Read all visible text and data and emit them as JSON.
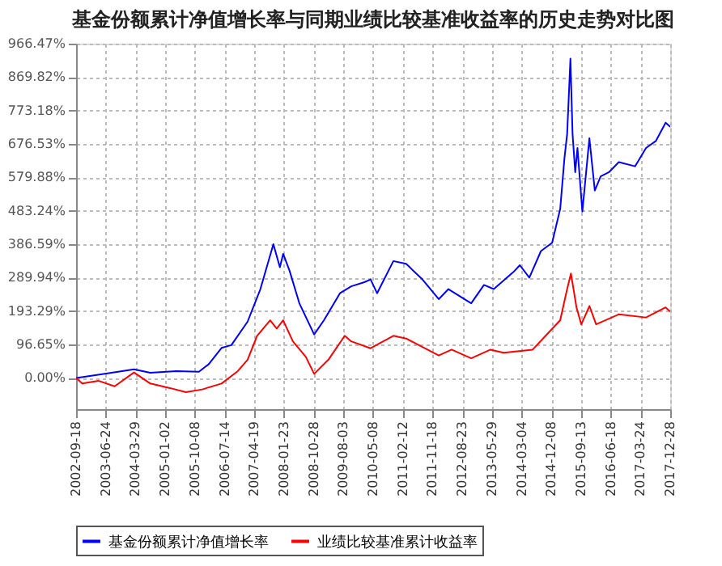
{
  "chart_data": {
    "type": "line",
    "title": "基金份额累计净值增长率与同期业绩比较基准收益率的历史走势对比图",
    "xlim": [
      "2002-09-18",
      "2017-12-28"
    ],
    "xticks": [
      "2002-09-18",
      "2003-06-24",
      "2004-03-29",
      "2005-01-02",
      "2005-10-08",
      "2006-07-14",
      "2007-04-19",
      "2008-01-23",
      "2008-10-28",
      "2009-08-03",
      "2010-05-08",
      "2011-02-12",
      "2011-11-18",
      "2012-08-23",
      "2013-05-29",
      "2014-03-04",
      "2014-12-08",
      "2015-09-13",
      "2016-06-18",
      "2017-03-24",
      "2017-12-28"
    ],
    "ylim": [
      -90,
      966.47
    ],
    "yticks": [
      {
        "value": 0,
        "label": "0.00%"
      },
      {
        "value": 96.65,
        "label": "96.65%"
      },
      {
        "value": 193.29,
        "label": "193.29%"
      },
      {
        "value": 289.94,
        "label": "289.94%"
      },
      {
        "value": 386.59,
        "label": "386.59%"
      },
      {
        "value": 483.24,
        "label": "483.24%"
      },
      {
        "value": 579.88,
        "label": "579.88%"
      },
      {
        "value": 676.53,
        "label": "676.53%"
      },
      {
        "value": 773.18,
        "label": "773.18%"
      },
      {
        "value": 869.82,
        "label": "869.82%"
      },
      {
        "value": 966.47,
        "label": "966.47%"
      }
    ],
    "grid": true,
    "legend": "bottom",
    "line_style": "solid",
    "marker": "none",
    "series": [
      {
        "name": "基金份额累计净值增长率",
        "color": "#0000ff",
        "x": [
          "2002-09-18",
          "2003-06-15",
          "2004-03-15",
          "2004-08-15",
          "2005-04-15",
          "2005-11-15",
          "2006-02-15",
          "2006-06-15",
          "2006-09-15",
          "2007-02-15",
          "2007-06-15",
          "2007-10-15",
          "2007-12-15",
          "2008-01-15",
          "2008-03-15",
          "2008-06-15",
          "2008-11-01",
          "2009-02-01",
          "2009-07-01",
          "2009-10-15",
          "2010-02-15",
          "2010-04-15",
          "2010-06-15",
          "2010-11-15",
          "2011-03-15",
          "2011-08-15",
          "2012-01-15",
          "2012-04-15",
          "2012-11-15",
          "2013-03-15",
          "2013-06-15",
          "2013-12-15",
          "2014-02-15",
          "2014-05-15",
          "2014-09-01",
          "2014-12-15",
          "2015-03-01",
          "2015-04-10",
          "2015-05-05",
          "2015-06-05",
          "2015-06-25",
          "2015-07-20",
          "2015-08-10",
          "2015-09-25",
          "2015-11-30",
          "2016-01-20",
          "2016-03-15",
          "2016-06-01",
          "2016-09-01",
          "2017-02-01",
          "2017-05-15",
          "2017-08-15",
          "2017-11-15",
          "2017-12-28"
        ],
        "values": [
          0,
          12,
          25,
          15,
          20,
          18,
          40,
          87,
          95,
          163,
          257,
          387,
          320,
          359,
          310,
          216,
          126,
          167,
          245,
          265,
          277,
          285,
          245,
          338,
          330,
          285,
          228,
          257,
          216,
          269,
          257,
          306,
          326,
          290,
          367,
          391,
          489,
          636,
          705,
          923,
          705,
          595,
          665,
          481,
          693,
          542,
          583,
          595,
          624,
          612,
          665,
          685,
          738,
          726
        ]
      },
      {
        "name": "业绩比较基准累计收益率",
        "color": "#ff0000",
        "x": [
          "2002-09-18",
          "2002-11-15",
          "2003-04-15",
          "2003-09-15",
          "2004-03-15",
          "2004-08-15",
          "2005-02-15",
          "2005-07-15",
          "2005-12-15",
          "2006-06-15",
          "2006-11-15",
          "2007-02-15",
          "2007-05-15",
          "2007-09-15",
          "2007-11-15",
          "2008-01-15",
          "2008-04-15",
          "2008-08-15",
          "2008-11-01",
          "2009-03-15",
          "2009-08-15",
          "2009-10-15",
          "2010-04-15",
          "2010-11-15",
          "2011-03-15",
          "2012-01-15",
          "2012-05-15",
          "2012-11-15",
          "2013-05-15",
          "2013-09-15",
          "2014-06-15",
          "2014-10-15",
          "2015-03-01",
          "2015-05-05",
          "2015-06-10",
          "2015-08-01",
          "2015-09-15",
          "2015-12-01",
          "2016-02-01",
          "2016-09-01",
          "2017-05-15",
          "2017-11-15",
          "2017-12-28"
        ],
        "values": [
          0,
          -16,
          -8,
          -24,
          16,
          -16,
          -29,
          -41,
          -33,
          -16,
          20,
          53,
          122,
          167,
          143,
          167,
          106,
          61,
          12,
          53,
          122,
          106,
          86,
          122,
          114,
          65,
          82,
          57,
          82,
          73,
          82,
          122,
          167,
          257,
          302,
          204,
          155,
          208,
          155,
          184,
          175,
          204,
          192
        ]
      }
    ]
  }
}
